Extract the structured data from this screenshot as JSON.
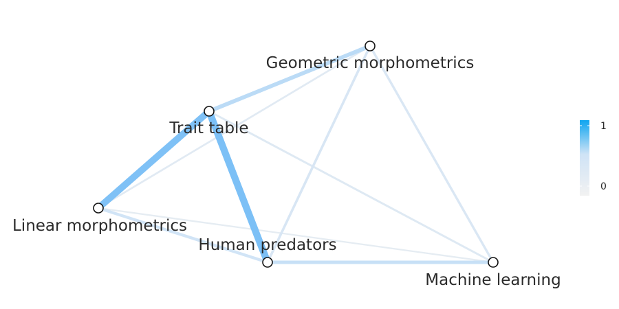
{
  "nodes": [
    {
      "id": "geo",
      "label": "Geometric morphometrics"
    },
    {
      "id": "trait",
      "label": "Trait table"
    },
    {
      "id": "linear",
      "label": "Linear morphometrics"
    },
    {
      "id": "human",
      "label": "Human predators"
    },
    {
      "id": "ml",
      "label": "Machine learning"
    }
  ],
  "edges": [
    {
      "source": "trait",
      "target": "human",
      "weight": 0.82
    },
    {
      "source": "trait",
      "target": "linear",
      "weight": 0.78
    },
    {
      "source": "trait",
      "target": "geo",
      "weight": 0.42
    },
    {
      "source": "human",
      "target": "ml",
      "weight": 0.35
    },
    {
      "source": "linear",
      "target": "human",
      "weight": 0.28
    },
    {
      "source": "geo",
      "target": "human",
      "weight": 0.22
    },
    {
      "source": "geo",
      "target": "ml",
      "weight": 0.2
    },
    {
      "source": "trait",
      "target": "ml",
      "weight": 0.16
    },
    {
      "source": "linear",
      "target": "geo",
      "weight": 0.14
    },
    {
      "source": "linear",
      "target": "ml",
      "weight": 0.1
    }
  ],
  "legend": {
    "max_label": "1",
    "min_label": "0",
    "color_high": "#0ea5f0",
    "color_low": "#f2f2f2"
  },
  "colors": {
    "node_fill": "#ffffff",
    "node_stroke": "#111111",
    "label": "#2b2b2b"
  }
}
